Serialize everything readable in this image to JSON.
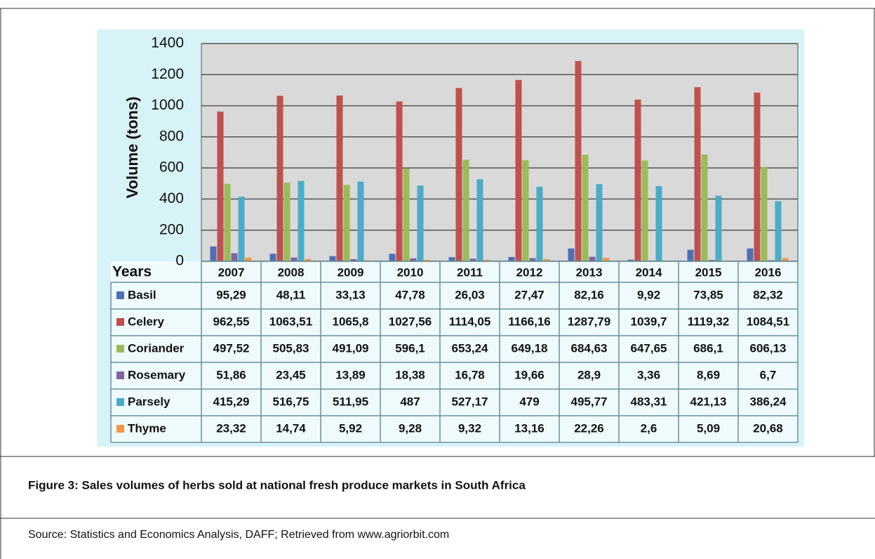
{
  "caption": "Figure 3: Sales volumes of herbs sold at national fresh produce markets in South Africa",
  "source": "Source: Statistics and Economics Analysis, DAFF; Retrieved from www.agriorbit.com",
  "chart_data": {
    "type": "bar",
    "y_label": "Volume (tons)",
    "x_label": "Years",
    "categories": [
      "2007",
      "2008",
      "2009",
      "2010",
      "2011",
      "2012",
      "2013",
      "2014",
      "2015",
      "2016"
    ],
    "ylim": [
      0,
      1400
    ],
    "yticks": [
      0,
      200,
      400,
      600,
      800,
      1000,
      1200,
      1400
    ],
    "grid": true,
    "series": [
      {
        "name": "Basil",
        "color": "#4f6fb5",
        "values": [
          95.29,
          48.11,
          33.13,
          47.78,
          26.03,
          27.47,
          82.16,
          9.92,
          73.85,
          82.32
        ],
        "value_labels": [
          "95,29",
          "48,11",
          "33,13",
          "47,78",
          "26,03",
          "27,47",
          "82,16",
          "9,92",
          "73,85",
          "82,32"
        ]
      },
      {
        "name": "Celery",
        "color": "#c0504d",
        "values": [
          962.55,
          1063.51,
          1065.8,
          1027.56,
          1114.05,
          1166.16,
          1287.79,
          1039.7,
          1119.32,
          1084.51
        ],
        "value_labels": [
          "962,55",
          "1063,51",
          "1065,8",
          "1027,56",
          "1114,05",
          "1166,16",
          "1287,79",
          "1039,7",
          "1119,32",
          "1084,51"
        ]
      },
      {
        "name": "Coriander",
        "color": "#9bbb59",
        "values": [
          497.52,
          505.83,
          491.09,
          596.1,
          653.24,
          649.18,
          684.63,
          647.65,
          686.1,
          606.13
        ],
        "value_labels": [
          "497,52",
          "505,83",
          "491,09",
          "596,1",
          "653,24",
          "649,18",
          "684,63",
          "647,65",
          "686,1",
          "606,13"
        ]
      },
      {
        "name": "Rosemary",
        "color": "#8064a2",
        "values": [
          51.86,
          23.45,
          13.89,
          18.38,
          16.78,
          19.66,
          28.9,
          3.36,
          8.69,
          6.7
        ],
        "value_labels": [
          "51,86",
          "23,45",
          "13,89",
          "18,38",
          "16,78",
          "19,66",
          "28,9",
          "3,36",
          "8,69",
          "6,7"
        ]
      },
      {
        "name": "Parsely",
        "color": "#4bacc6",
        "values": [
          415.29,
          516.75,
          511.95,
          487,
          527.17,
          479,
          495.77,
          483.31,
          421.13,
          386.24
        ],
        "value_labels": [
          "415,29",
          "516,75",
          "511,95",
          "487",
          "527,17",
          "479",
          "495,77",
          "483,31",
          "421,13",
          "386,24"
        ]
      },
      {
        "name": "Thyme",
        "color": "#f79646",
        "values": [
          23.32,
          14.74,
          5.92,
          9.28,
          9.32,
          13.16,
          22.26,
          2.6,
          5.09,
          20.68
        ],
        "value_labels": [
          "23,32",
          "14,74",
          "5,92",
          "9,28",
          "9,32",
          "13,16",
          "22,26",
          "2,6",
          "5,09",
          "20,68"
        ]
      }
    ]
  }
}
